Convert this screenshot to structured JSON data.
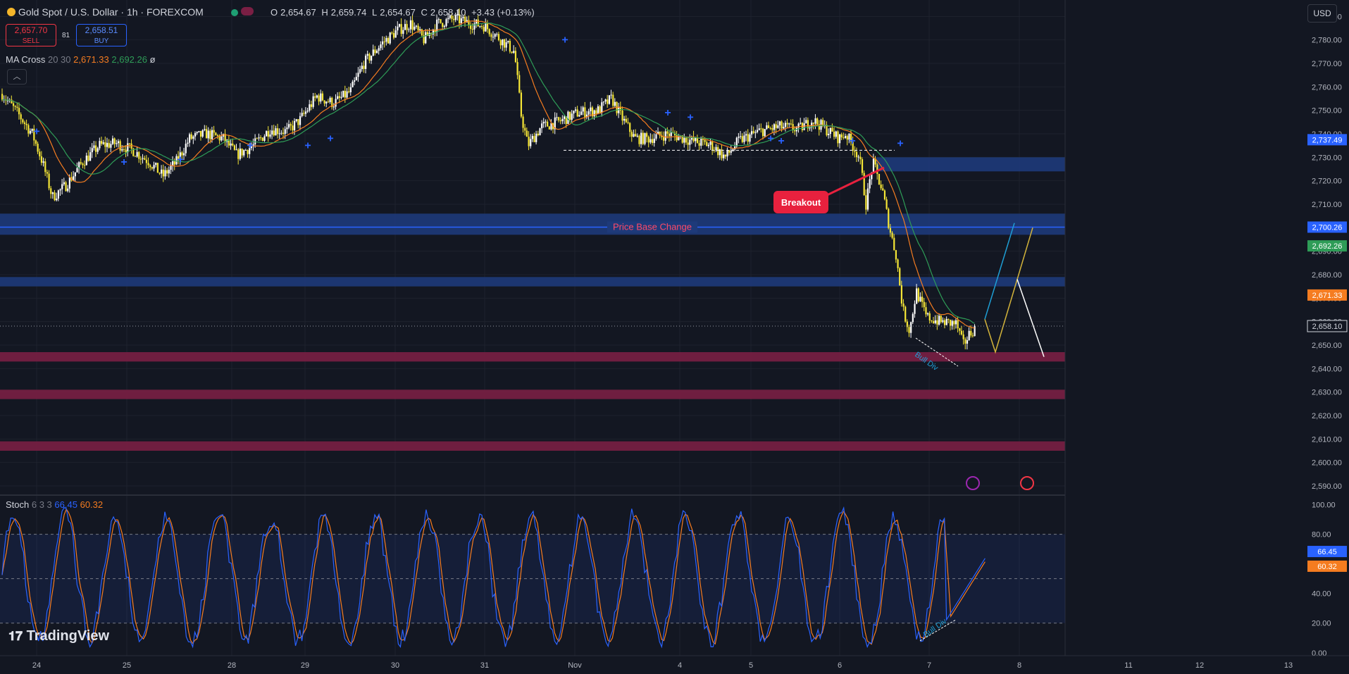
{
  "header": {
    "title": "Gold Spot / U.S. Dollar · 1h · FOREXCOM",
    "ohlc": {
      "o_label": "O",
      "o": "2,654.67",
      "h_label": "H",
      "h": "2,659.74",
      "l_label": "L",
      "l": "2,654.67",
      "c_label": "C",
      "c": "2,658.10",
      "change": "+3.43 (+0.13%)"
    },
    "sell_price": "2,657.70",
    "sell_label": "SELL",
    "buy_price": "2,658.51",
    "buy_label": "BUY",
    "spread": "81",
    "currency": "USD"
  },
  "indicators": {
    "ma_cross": {
      "name": "MA Cross",
      "params": "20 30",
      "fast_value": "2,671.33",
      "slow_value": "2,692.26",
      "symbol": "ø"
    },
    "stoch": {
      "name": "Stoch",
      "params": "6 3 3",
      "k_value": "66.45",
      "d_value": "60.32"
    }
  },
  "colors": {
    "background": "#131722",
    "grid": "#1e222d",
    "up": "#ffffff",
    "down": "#f5e636",
    "ma_fast": "#f57c20",
    "ma_slow": "#2e9c57",
    "resistance_zone": "#1e3a7a",
    "support_zone": "#7a1f44",
    "price_line": "#2962ff",
    "stoch_k": "#2962ff",
    "stoch_d": "#f57c20",
    "label_red": "#e8213e"
  },
  "annotations": {
    "breakout": "Breakout",
    "price_base_change": "Price Base Change",
    "bull_div_price": "Bull Div",
    "bull_div_stoch": "Bull Div"
  },
  "branding": "TradingView",
  "chart_data": [
    {
      "type": "candlestick",
      "title": "Gold Spot / U.S. Dollar · 1h · FOREXCOM",
      "x_ticks": [
        "24",
        "25",
        "28",
        "29",
        "30",
        "31",
        "Nov",
        "4",
        "5",
        "6",
        "7",
        "8",
        "11",
        "12",
        "13"
      ],
      "y_ticks": [
        "2,790.00",
        "2,780.00",
        "2,770.00",
        "2,760.00",
        "2,750.00",
        "2,740.00",
        "2,730.00",
        "2,720.00",
        "2,710.00",
        "2,700.00",
        "2,690.00",
        "2,680.00",
        "2,670.00",
        "2,660.00",
        "2,650.00",
        "2,640.00",
        "2,630.00",
        "2,620.00",
        "2,610.00",
        "2,600.00",
        "2,590.00"
      ],
      "ylim": [
        2587,
        2797
      ],
      "price_key_points": [
        [
          0,
          2757
        ],
        [
          10,
          2748
        ],
        [
          18,
          2740
        ],
        [
          24,
          2728
        ],
        [
          30,
          2713
        ],
        [
          38,
          2718
        ],
        [
          48,
          2728
        ],
        [
          58,
          2735
        ],
        [
          68,
          2736
        ],
        [
          78,
          2733
        ],
        [
          88,
          2728
        ],
        [
          96,
          2722
        ],
        [
          104,
          2728
        ],
        [
          112,
          2738
        ],
        [
          122,
          2740
        ],
        [
          132,
          2738
        ],
        [
          140,
          2731
        ],
        [
          150,
          2735
        ],
        [
          160,
          2742
        ],
        [
          170,
          2741
        ],
        [
          178,
          2746
        ],
        [
          188,
          2756
        ],
        [
          198,
          2753
        ],
        [
          208,
          2758
        ],
        [
          216,
          2770
        ],
        [
          226,
          2778
        ],
        [
          236,
          2784
        ],
        [
          244,
          2787
        ],
        [
          252,
          2780
        ],
        [
          260,
          2787
        ],
        [
          270,
          2789
        ],
        [
          280,
          2787
        ],
        [
          288,
          2786
        ],
        [
          298,
          2780
        ],
        [
          306,
          2775
        ],
        [
          310,
          2748
        ],
        [
          314,
          2735
        ],
        [
          322,
          2743
        ],
        [
          332,
          2745
        ],
        [
          344,
          2749
        ],
        [
          356,
          2750
        ],
        [
          364,
          2755
        ],
        [
          370,
          2747
        ],
        [
          378,
          2738
        ],
        [
          386,
          2738
        ],
        [
          398,
          2740
        ],
        [
          412,
          2737
        ],
        [
          424,
          2735
        ],
        [
          432,
          2730
        ],
        [
          440,
          2737
        ],
        [
          452,
          2741
        ],
        [
          464,
          2743
        ],
        [
          476,
          2742
        ],
        [
          484,
          2746
        ],
        [
          492,
          2742
        ],
        [
          500,
          2738
        ],
        [
          504,
          2740
        ],
        [
          512,
          2730
        ],
        [
          516,
          2710
        ],
        [
          520,
          2728
        ],
        [
          526,
          2715
        ],
        [
          530,
          2700
        ],
        [
          534,
          2688
        ],
        [
          538,
          2665
        ],
        [
          542,
          2656
        ],
        [
          546,
          2673
        ],
        [
          552,
          2662
        ],
        [
          560,
          2660
        ],
        [
          570,
          2659
        ],
        [
          574,
          2650
        ],
        [
          578,
          2655
        ],
        [
          582,
          2658
        ]
      ],
      "horizontal_levels": [
        {
          "value": 2700.26,
          "label": "Price Base Change"
        }
      ],
      "zones": [
        {
          "kind": "resistance",
          "from": 2724,
          "to": 2730
        },
        {
          "kind": "resistance",
          "from": 2697,
          "to": 2706
        },
        {
          "kind": "resistance",
          "from": 2675,
          "to": 2679
        },
        {
          "kind": "support",
          "from": 2643,
          "to": 2647
        },
        {
          "kind": "support",
          "from": 2627,
          "to": 2631
        },
        {
          "kind": "support",
          "from": 2605,
          "to": 2609
        }
      ],
      "series": [
        {
          "name": "MA Cross 20",
          "last": "2,671.33",
          "values": "smoothed"
        },
        {
          "name": "MA Cross 30",
          "last": "2,692.26",
          "values": "smoothed"
        }
      ],
      "price_labels": [
        {
          "value": 2737.49,
          "text": "2,737.49",
          "color": "#2962ff"
        },
        {
          "value": 2700.26,
          "text": "2,700.26",
          "color": "#2962ff"
        },
        {
          "value": 2692.26,
          "text": "2,692.26",
          "color": "#2e9c57"
        },
        {
          "value": 2671.33,
          "text": "2,671.33",
          "color": "#f57c20"
        },
        {
          "value": 2658.1,
          "text": "2,658.10",
          "color": "#ffffff"
        }
      ],
      "projection": [
        {
          "path": [
            [
              2661,
              0
            ],
            [
              2702,
              1
            ]
          ],
          "color": "#1e9fd6"
        },
        {
          "path": [
            [
              2661,
              0
            ],
            [
              2647,
              1
            ],
            [
              2700,
              2
            ]
          ],
          "color": "#d4b43a"
        },
        {
          "path": [
            [
              2678,
              0
            ],
            [
              2645,
              1
            ]
          ],
          "color": "#ffffff"
        }
      ]
    },
    {
      "type": "line",
      "title": "Stoch 6 3 3",
      "y_ticks": [
        "100.00",
        "80.00",
        "60.00",
        "40.00",
        "20.00",
        "0.00"
      ],
      "ylim": [
        -2,
        105
      ],
      "levels": [
        80,
        50,
        20
      ],
      "series": [
        {
          "name": "%K",
          "last": "66.45"
        },
        {
          "name": "%D",
          "last": "60.32"
        }
      ]
    }
  ]
}
